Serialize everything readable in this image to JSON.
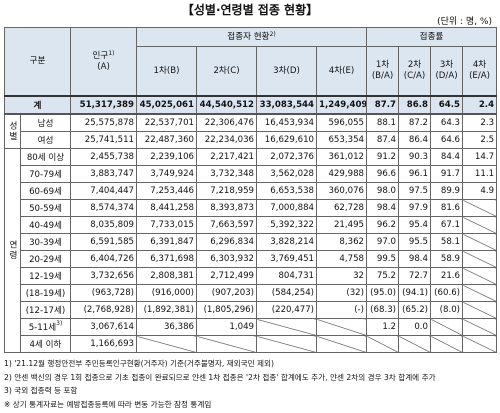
{
  "title": "【성별·연령별 접종 현황】",
  "unit": "(단위 : 명, %)",
  "header": {
    "group": "구분",
    "population": {
      "label": "인구",
      "note": "1)",
      "sub": "(A)"
    },
    "vaccinated": {
      "label": "접종자 현황",
      "note": "2)",
      "columns": [
        "1차(B)",
        "2차(C)",
        "3차(D)",
        "4차(E)"
      ]
    },
    "rate": {
      "label": "접종률",
      "columns": [
        {
          "label": "1차",
          "sub": "(B/A)"
        },
        {
          "label": "2차",
          "sub": "(C/A)"
        },
        {
          "label": "3차",
          "sub": "(D/A)"
        },
        {
          "label": "4차",
          "sub": "(E/A)"
        }
      ]
    }
  },
  "total": {
    "label": "계",
    "cells": [
      "51,317,389",
      "45,025,061",
      "44,540,512",
      "33,083,544",
      "1,249,409",
      "87.7",
      "86.8",
      "64.5",
      "2.4"
    ]
  },
  "sections": [
    {
      "label": "성별",
      "rows": [
        {
          "label": "남성",
          "cells": [
            "25,575,878",
            "22,537,701",
            "22,306,476",
            "16,453,934",
            "596,055",
            "88.1",
            "87.2",
            "64.3",
            "2.3"
          ]
        },
        {
          "label": "여성",
          "cells": [
            "25,741,511",
            "22,487,360",
            "22,234,036",
            "16,629,610",
            "653,354",
            "87.4",
            "86.4",
            "64.6",
            "2.5"
          ]
        }
      ]
    },
    {
      "label": "연령",
      "rows": [
        {
          "label": "80세 이상",
          "cells": [
            "2,455,738",
            "2,239,106",
            "2,217,421",
            "2,072,376",
            "361,012",
            "91.2",
            "90.3",
            "84.4",
            "14.7"
          ]
        },
        {
          "label": "70-79세",
          "cells": [
            "3,883,747",
            "3,749,924",
            "3,732,348",
            "3,562,028",
            "429,988",
            "96.6",
            "96.1",
            "91.7",
            "11.1"
          ]
        },
        {
          "label": "60-69세",
          "cells": [
            "7,404,447",
            "7,253,446",
            "7,218,959",
            "6,653,538",
            "360,076",
            "98.0",
            "97.5",
            "89.9",
            "4.9"
          ]
        },
        {
          "label": "50-59세",
          "cells": [
            "8,574,374",
            "8,441,258",
            "8,393,873",
            "7,000,884",
            "62,728",
            "98.4",
            "97.9",
            "81.6",
            null
          ]
        },
        {
          "label": "40-49세",
          "cells": [
            "8,035,809",
            "7,733,015",
            "7,663,597",
            "5,392,322",
            "21,495",
            "96.2",
            "95.4",
            "67.1",
            null
          ]
        },
        {
          "label": "30-39세",
          "cells": [
            "6,591,585",
            "6,391,847",
            "6,296,834",
            "3,828,214",
            "8,362",
            "97.0",
            "95.5",
            "58.1",
            null
          ]
        },
        {
          "label": "20-29세",
          "cells": [
            "6,404,726",
            "6,371,698",
            "6,303,932",
            "3,769,451",
            "4,758",
            "99.5",
            "98.4",
            "58.9",
            null
          ]
        },
        {
          "label": "12-19세",
          "cells": [
            "3,732,656",
            "2,808,381",
            "2,712,499",
            "804,731",
            "32",
            "75.2",
            "72.7",
            "21.6",
            null
          ]
        },
        {
          "label": "(18-19세)",
          "cells": [
            "(963,728)",
            "(916,000)",
            "(907,203)",
            "(584,254)",
            "(32)",
            "(95.0)",
            "(94.1)",
            "(60.6)",
            null
          ]
        },
        {
          "label": "(12-17세)",
          "cells": [
            "(2,768,928)",
            "(1,892,381)",
            "(1,805,296)",
            "(220,477)",
            "(-)",
            "(68.3)",
            "(65.2)",
            "(8.0)",
            null
          ]
        },
        {
          "label": "5-11세",
          "note": "3)",
          "cells": [
            "3,067,614",
            "36,386",
            "1,049",
            null,
            null,
            "1.2",
            "0.0",
            null,
            null
          ]
        },
        {
          "label": "4세 이하",
          "cells": [
            "1,166,693",
            null,
            null,
            null,
            null,
            null,
            null,
            null,
            null
          ]
        }
      ]
    }
  ],
  "footnotes": [
    "1) '21.12월 행정안전부 주민등록인구현황(거주자) 기준(거주불명자, 재외국민 제외)",
    "2) 얀센 백신의 경우 1회 접종으로 기초 접종이 완료되므로 얀센 1차 접종은 '2차 접종' 합계에도 추가, 얀센 2차의 경우 3차 합계에 추가",
    "3) 국외 접종력 등 포함",
    "※ 상기 통계자료는 예방접종등록에 따라 변동 가능한 잠정 통계임"
  ]
}
